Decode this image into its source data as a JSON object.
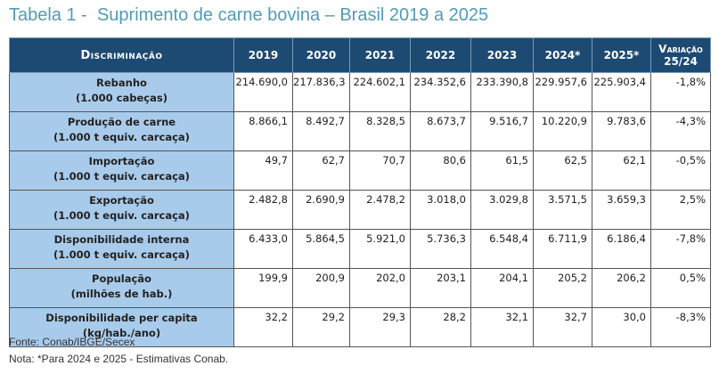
{
  "header": {
    "title": "Tabela 1 -  Suprimento de carne bovina – Brasil 2019 a 2025"
  },
  "table": {
    "columns": [
      "Discriminação",
      "2019",
      "2020",
      "2021",
      "2022",
      "2023",
      "2024*",
      "2025*",
      "Variação 25/24"
    ],
    "rows": [
      {
        "label": "Rebanho",
        "unit": "(1.000 cabeças)",
        "cells": [
          "214.690,0",
          "217.836,3",
          "224.602,1",
          "234.352,6",
          "233.390,8",
          "229.957,6",
          "225.903,4",
          "-1,8%"
        ]
      },
      {
        "label": "Produção de carne",
        "unit": "(1.000 t equiv. carcaça)",
        "cells": [
          "8.866,1",
          "8.492,7",
          "8.328,5",
          "8.673,7",
          "9.516,7",
          "10.220,9",
          "9.783,6",
          "-4,3%"
        ]
      },
      {
        "label": "Importação",
        "unit": "(1.000 t equiv. carcaça)",
        "cells": [
          "49,7",
          "62,7",
          "70,7",
          "80,6",
          "61,5",
          "62,5",
          "62,1",
          "-0,5%"
        ]
      },
      {
        "label": "Exportação",
        "unit": "(1.000 t equiv. carcaça)",
        "cells": [
          "2.482,8",
          "2.690,9",
          "2.478,2",
          "3.018,0",
          "3.029,8",
          "3.571,5",
          "3.659,3",
          "2,5%"
        ]
      },
      {
        "label": "Disponibilidade interna",
        "unit": "(1.000 t equiv. carcaça)",
        "cells": [
          "6.433,0",
          "5.864,5",
          "5.921,0",
          "5.736,3",
          "6.548,4",
          "6.711,9",
          "6.186,4",
          "-7,8%"
        ]
      },
      {
        "label": "População",
        "unit": "(milhões de hab.)",
        "cells": [
          "199,9",
          "200,9",
          "202,0",
          "203,1",
          "204,1",
          "205,2",
          "206,2",
          "0,5%"
        ]
      },
      {
        "label": "Disponibilidade per capita",
        "unit": "(kg/hab./ano)",
        "cells": [
          "32,2",
          "29,2",
          "29,3",
          "28,2",
          "32,1",
          "32,7",
          "30,0",
          "-8,3%"
        ]
      }
    ]
  },
  "footer": {
    "source": "Fonte: Conab/IBGE/Secex",
    "note": "Nota: *Para 2024 e 2025 - Estimativas Conab."
  }
}
